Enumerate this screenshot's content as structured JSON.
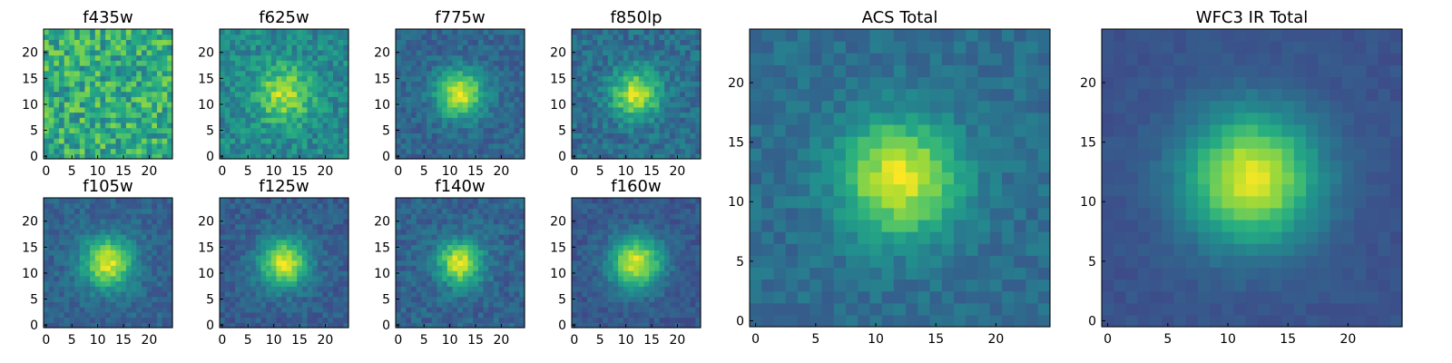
{
  "chart_data": {
    "type": "heatmap",
    "grid_size": 25,
    "colormap": "viridis",
    "panels": [
      {
        "title": "f435w",
        "xticks": [
          0,
          5,
          10,
          15,
          20
        ],
        "yticks": [
          0,
          5,
          10,
          15,
          20
        ],
        "center": [
          12,
          12
        ],
        "peak_level": 0.62,
        "source_width": 5.0,
        "noise": 0.42,
        "background": 0.62,
        "seed": 11
      },
      {
        "title": "f625w",
        "xticks": [
          0,
          5,
          10,
          15,
          20
        ],
        "yticks": [
          0,
          5,
          10,
          15,
          20
        ],
        "center": [
          12,
          12
        ],
        "peak_level": 0.88,
        "source_width": 3.8,
        "noise": 0.26,
        "background": 0.47,
        "seed": 23
      },
      {
        "title": "f775w",
        "xticks": [
          0,
          5,
          10,
          15,
          20
        ],
        "yticks": [
          0,
          5,
          10,
          15,
          20
        ],
        "center": [
          12,
          12
        ],
        "peak_level": 0.95,
        "source_width": 3.2,
        "noise": 0.18,
        "background": 0.33,
        "seed": 37
      },
      {
        "title": "f850lp",
        "xticks": [
          0,
          5,
          10,
          15,
          20
        ],
        "yticks": [
          0,
          5,
          10,
          15,
          20
        ],
        "center": [
          12,
          12
        ],
        "peak_level": 0.92,
        "source_width": 3.3,
        "noise": 0.22,
        "background": 0.36,
        "seed": 41
      },
      {
        "title": "f105w",
        "xticks": [
          0,
          5,
          10,
          15,
          20
        ],
        "yticks": [
          0,
          5,
          10,
          15,
          20
        ],
        "center": [
          12,
          12
        ],
        "peak_level": 0.95,
        "source_width": 3.4,
        "noise": 0.16,
        "background": 0.32,
        "seed": 53
      },
      {
        "title": "f125w",
        "xticks": [
          0,
          5,
          10,
          15,
          20
        ],
        "yticks": [
          0,
          5,
          10,
          15,
          20
        ],
        "center": [
          12,
          12
        ],
        "peak_level": 0.95,
        "source_width": 3.3,
        "noise": 0.16,
        "background": 0.3,
        "seed": 67
      },
      {
        "title": "f140w",
        "xticks": [
          0,
          5,
          10,
          15,
          20
        ],
        "yticks": [
          0,
          5,
          10,
          15,
          20
        ],
        "center": [
          12,
          12
        ],
        "peak_level": 0.95,
        "source_width": 3.0,
        "noise": 0.18,
        "background": 0.32,
        "seed": 71
      },
      {
        "title": "f160w",
        "xticks": [
          0,
          5,
          10,
          15,
          20
        ],
        "yticks": [
          0,
          5,
          10,
          15,
          20
        ],
        "center": [
          12,
          12
        ],
        "peak_level": 0.95,
        "source_width": 3.5,
        "noise": 0.14,
        "background": 0.28,
        "seed": 83
      },
      {
        "title": "ACS Total",
        "xticks": [
          0,
          5,
          10,
          15,
          20
        ],
        "yticks": [
          0,
          5,
          10,
          15,
          20
        ],
        "center": [
          12,
          12
        ],
        "peak_level": 0.97,
        "source_width": 3.4,
        "noise": 0.14,
        "background": 0.36,
        "seed": 97
      },
      {
        "title": "WFC3 IR Total",
        "xticks": [
          0,
          5,
          10,
          15,
          20
        ],
        "yticks": [
          0,
          5,
          10,
          15,
          20
        ],
        "center": [
          12,
          12
        ],
        "peak_level": 0.97,
        "source_width": 3.8,
        "noise": 0.06,
        "background": 0.26,
        "seed": 101
      }
    ]
  }
}
